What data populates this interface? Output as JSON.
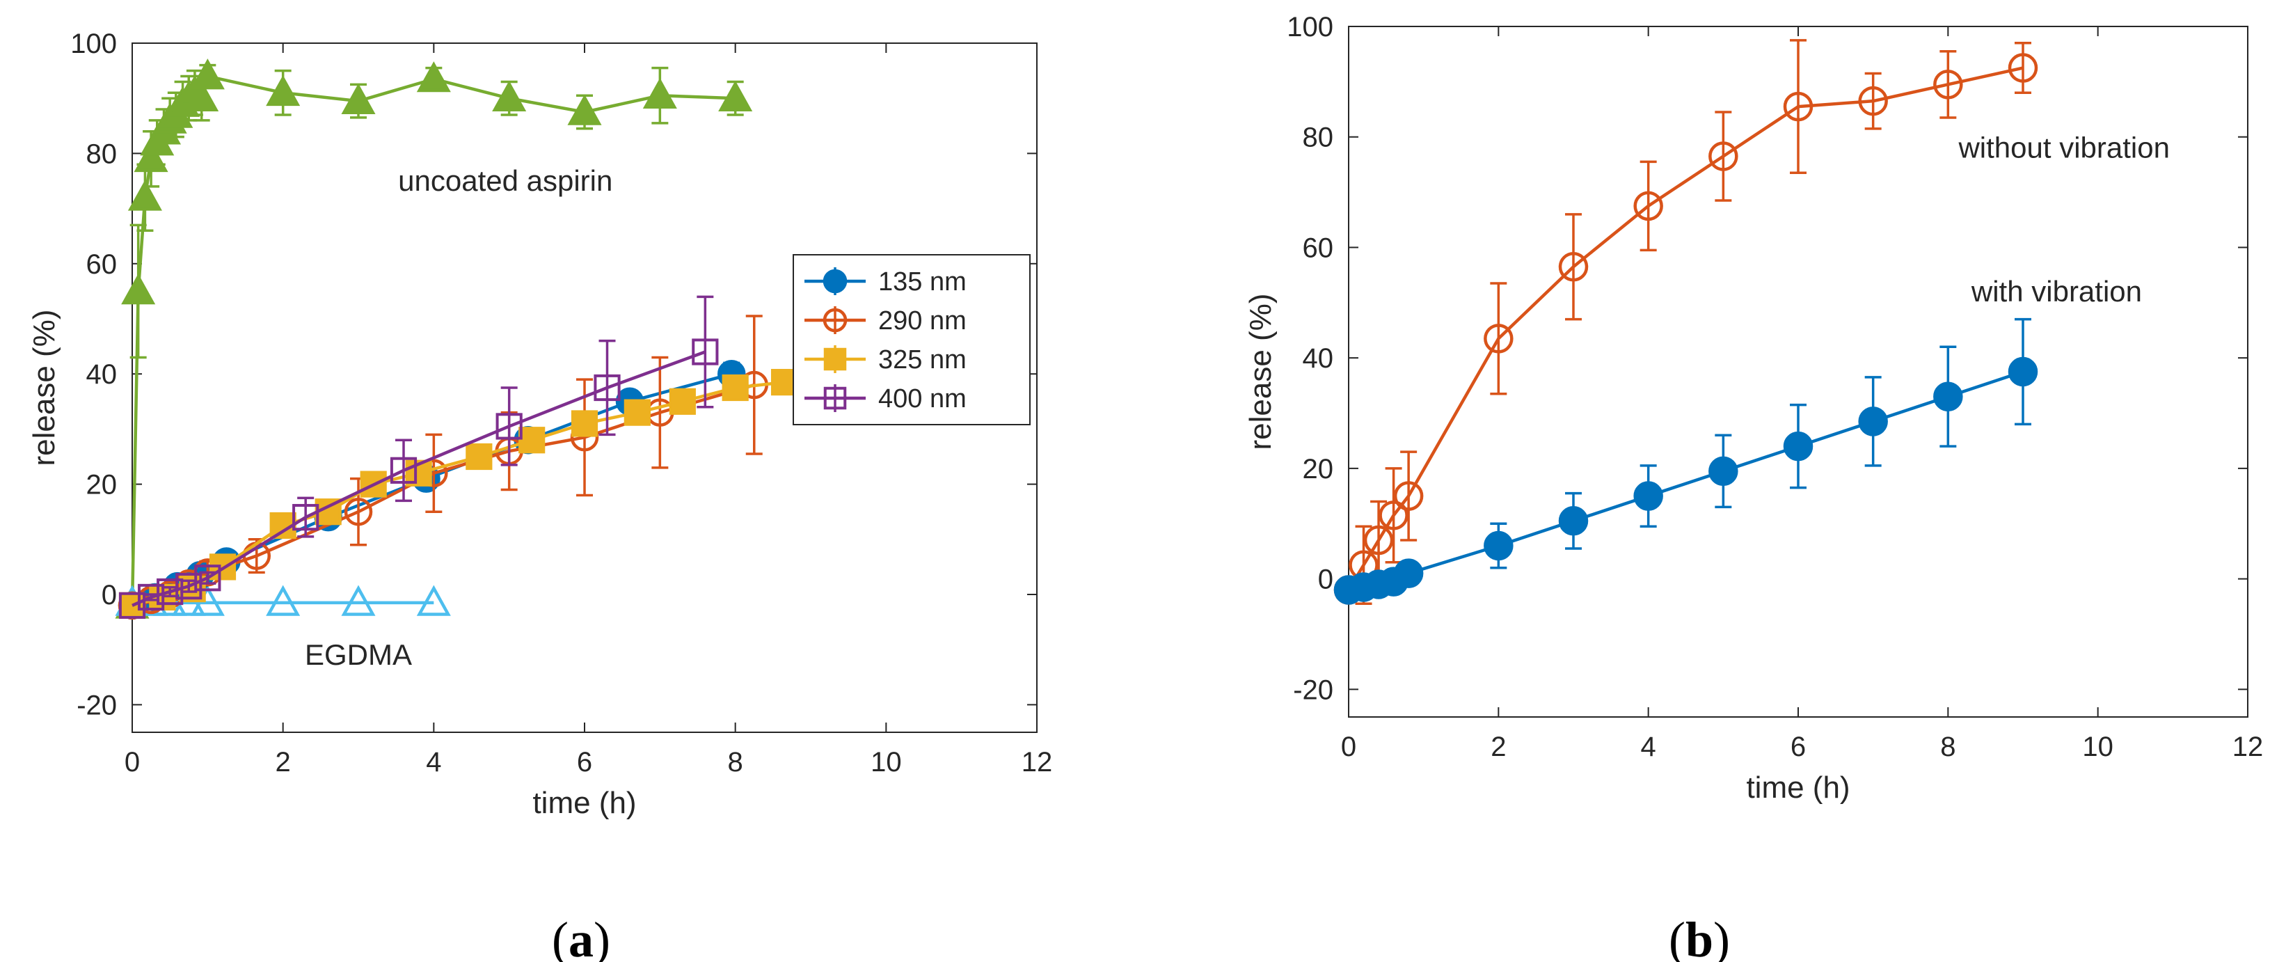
{
  "figure_labels": {
    "a_open": "(",
    "a_letter": "a",
    "a_close": ")",
    "b_open": "(",
    "b_letter": "b",
    "b_close": ")"
  },
  "chart_data": [
    {
      "type": "line",
      "panel": "a",
      "title": "",
      "xlabel": "time (h)",
      "ylabel": "release (%)",
      "xlim": [
        0,
        12
      ],
      "ylim": [
        -25,
        100
      ],
      "xticks": [
        0,
        2,
        4,
        6,
        8,
        10,
        12
      ],
      "yticks": [
        -20,
        0,
        20,
        40,
        60,
        80,
        100
      ],
      "grid": false,
      "legend_position": "right-middle",
      "series": [
        {
          "name": "uncoated aspirin",
          "color": "#77AC30",
          "marker": "triangle-filled",
          "in_legend": false,
          "x": [
            0,
            0.08,
            0.17,
            0.25,
            0.33,
            0.42,
            0.5,
            0.58,
            0.67,
            0.75,
            0.83,
            0.92,
            1.0,
            2.0,
            3.0,
            4.0,
            5.0,
            6.0,
            7.0,
            8.0
          ],
          "y": [
            -2,
            55,
            72,
            79,
            82,
            84,
            86,
            87,
            89,
            90,
            91,
            90,
            94,
            91,
            89.5,
            93.5,
            90,
            87.5,
            90.5,
            90
          ],
          "err": [
            0,
            12,
            6,
            5,
            4,
            4,
            4,
            4,
            4,
            4,
            4,
            4,
            2,
            4,
            3,
            2,
            3,
            3,
            5,
            3
          ]
        },
        {
          "name": "EGDMA",
          "color": "#4DBEEE",
          "marker": "triangle-open",
          "in_legend": false,
          "x": [
            0,
            0.25,
            0.5,
            0.75,
            1.0,
            2.0,
            3.0,
            4.0
          ],
          "y": [
            -1.5,
            -1.5,
            -1.5,
            -1.5,
            -1.5,
            -1.5,
            -1.5,
            -1.5
          ],
          "err": [
            0,
            0,
            0,
            0,
            0,
            0,
            0,
            0
          ]
        },
        {
          "name": "135 nm",
          "color": "#0072BD",
          "marker": "circle-filled",
          "in_legend": true,
          "x": [
            0,
            0.3,
            0.6,
            0.9,
            1.25,
            2.6,
            3.9,
            5.25,
            6.6,
            7.95
          ],
          "y": [
            -2,
            -0.5,
            1.5,
            3.5,
            6,
            14,
            21,
            28,
            35,
            40
          ],
          "err": [
            0,
            0.5,
            0.5,
            0.8,
            1,
            1,
            1,
            1.5,
            1.5,
            2
          ]
        },
        {
          "name": "290 nm",
          "color": "#D95319",
          "marker": "circle-open",
          "in_legend": true,
          "x": [
            0,
            0.25,
            0.5,
            0.75,
            1.0,
            1.65,
            3.0,
            4.0,
            5.0,
            6.0,
            7.0,
            8.25
          ],
          "y": [
            -2,
            -1,
            0,
            2,
            4,
            7,
            15,
            22,
            26,
            28.5,
            33,
            38
          ],
          "err": [
            0,
            0.5,
            1,
            1,
            2,
            3,
            6,
            7,
            7,
            10.5,
            10,
            12.5
          ]
        },
        {
          "name": "325 nm",
          "color": "#EDB120",
          "marker": "square-filled",
          "in_legend": true,
          "x": [
            0,
            0.4,
            0.8,
            1.2,
            2.0,
            2.6,
            3.2,
            3.8,
            4.6,
            5.3,
            6.0,
            6.7,
            7.3,
            8.0,
            8.65
          ],
          "y": [
            -2,
            -0.5,
            1,
            5,
            12.5,
            15,
            20,
            22,
            25,
            28,
            31,
            33,
            35,
            37.5,
            38.5
          ],
          "err": [
            0,
            0.5,
            0.5,
            1,
            1,
            1,
            1,
            1,
            1,
            1,
            1,
            1,
            1,
            1,
            1
          ]
        },
        {
          "name": "400 nm",
          "color": "#7E2F8E",
          "marker": "square-open",
          "in_legend": true,
          "x": [
            0,
            0.25,
            0.5,
            0.75,
            1.0,
            2.3,
            3.6,
            5.0,
            6.3,
            7.6
          ],
          "y": [
            -2,
            -0.5,
            0.5,
            1.5,
            3,
            14,
            22.5,
            30.5,
            37.5,
            44
          ],
          "err": [
            0,
            0.5,
            0.8,
            1,
            1,
            3.5,
            5.5,
            7,
            8.5,
            10
          ]
        }
      ],
      "annotations": [
        {
          "text": "uncoated aspirin",
          "x": 4.95,
          "y": 75
        },
        {
          "text": "EGDMA",
          "x": 3.0,
          "y": -11
        }
      ]
    },
    {
      "type": "line",
      "panel": "b",
      "title": "",
      "xlabel": "time (h)",
      "ylabel": "release (%)",
      "xlim": [
        0,
        12
      ],
      "ylim": [
        -25,
        100
      ],
      "xticks": [
        0,
        2,
        4,
        6,
        8,
        10,
        12
      ],
      "yticks": [
        -20,
        0,
        20,
        40,
        60,
        80,
        100
      ],
      "grid": false,
      "series": [
        {
          "name": "without vibration",
          "color": "#D95319",
          "marker": "circle-open",
          "x": [
            0,
            0.2,
            0.4,
            0.6,
            0.8,
            2.0,
            3.0,
            4.0,
            5.0,
            6.0,
            7.0,
            8.0,
            9.0
          ],
          "y": [
            -2,
            2.5,
            7,
            11.5,
            15,
            43.5,
            56.5,
            67.5,
            76.5,
            85.5,
            86.5,
            89.5,
            92.5
          ],
          "err": [
            0,
            7,
            7,
            8.5,
            8,
            10,
            9.5,
            8,
            8,
            12,
            5,
            6,
            4.5
          ]
        },
        {
          "name": "with vibration",
          "color": "#0072BD",
          "marker": "circle-filled",
          "x": [
            0,
            0.2,
            0.4,
            0.6,
            0.8,
            2.0,
            3.0,
            4.0,
            5.0,
            6.0,
            7.0,
            8.0,
            9.0
          ],
          "y": [
            -2,
            -1.5,
            -1,
            -0.5,
            1,
            6,
            10.5,
            15,
            19.5,
            24,
            28.5,
            33,
            37.5
          ],
          "err": [
            0,
            0.5,
            0.5,
            0.5,
            0.5,
            4,
            5,
            5.5,
            6.5,
            7.5,
            8,
            9,
            9.5
          ]
        }
      ],
      "annotations": [
        {
          "text": "without vibration",
          "x": 9.55,
          "y": 78
        },
        {
          "text": "with vibration",
          "x": 9.45,
          "y": 52
        }
      ]
    }
  ]
}
